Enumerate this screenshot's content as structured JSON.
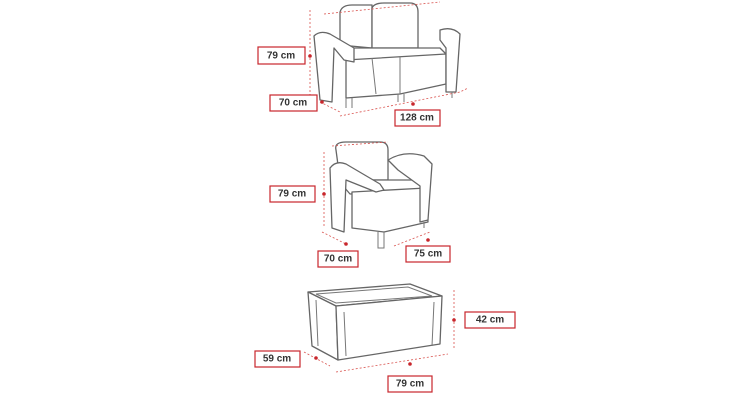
{
  "sofa": {
    "height": "79 cm",
    "depth": "70 cm",
    "width": "128 cm"
  },
  "armchair": {
    "height": "79 cm",
    "depth": "70 cm",
    "width": "75 cm"
  },
  "table": {
    "height": "42 cm",
    "depth": "59 cm",
    "width": "79 cm"
  }
}
